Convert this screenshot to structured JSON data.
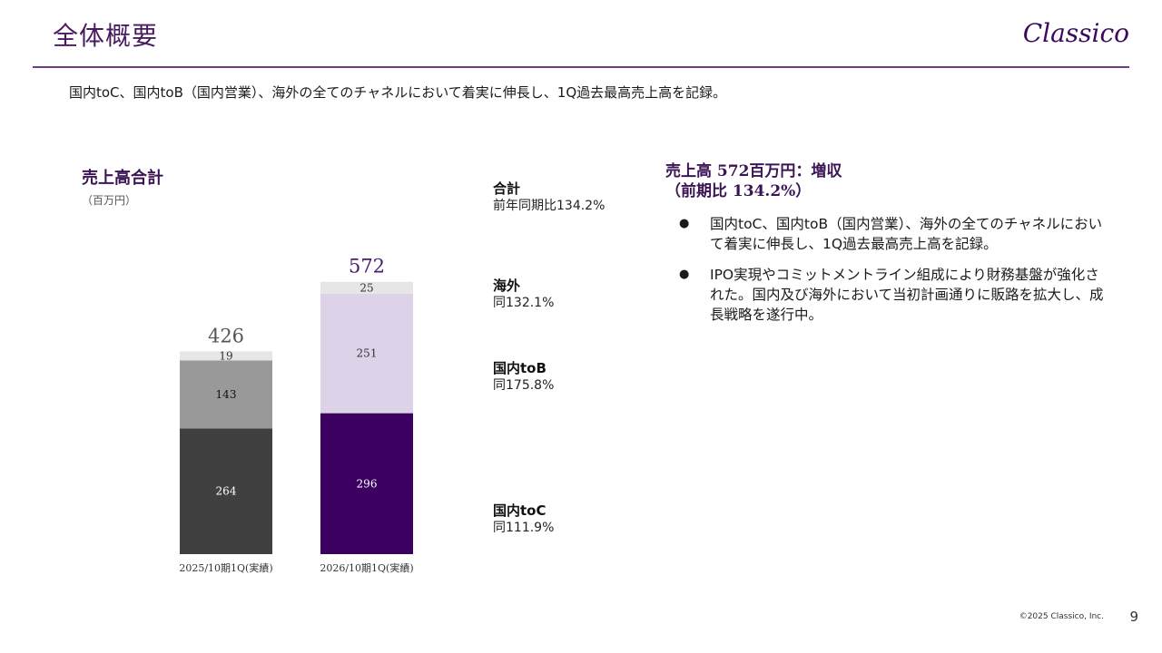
{
  "header": {
    "title": "全体概要",
    "logo_text": "Classico"
  },
  "subtitle": "国内toC、国内toB（国内営業）、海外の全てのチャネルにおいて着実に伸長し、1Q過去最高売上高を記録。",
  "chart_data": {
    "type": "bar",
    "stacked": true,
    "title": "売上高合計",
    "unit": "（百万円）",
    "categories": [
      "2025/10期1Q(実績)",
      "2026/10期1Q(実績)"
    ],
    "totals": [
      426,
      572
    ],
    "series": [
      {
        "name": "国内toC",
        "values": [
          264,
          296
        ],
        "colors": [
          "#404040",
          "#3b0060"
        ],
        "label_colors": [
          "#ffffff",
          "#ffffff"
        ]
      },
      {
        "name": "国内toB",
        "values": [
          143,
          251
        ],
        "colors": [
          "#999999",
          "#ddd3e8"
        ],
        "label_colors": [
          "#111111",
          "#333333"
        ]
      },
      {
        "name": "海外",
        "values": [
          19,
          25
        ],
        "colors": [
          "#e6e6e6",
          "#e6e6e6"
        ],
        "label_colors": [
          "#333333",
          "#333333"
        ]
      }
    ],
    "total_label_colors": [
      "#555555",
      "#4a1a6e"
    ],
    "ylim": [
      0,
      600
    ]
  },
  "growth": [
    {
      "name": "合計",
      "value": "前年同期比134.2%"
    },
    {
      "name": "海外",
      "value": "同132.1%"
    },
    {
      "name": "国内toB",
      "value": "同175.8%"
    },
    {
      "name": "国内toC",
      "value": "同111.9%"
    }
  ],
  "summary": {
    "head_line1": "売上高 572百万円：増収",
    "head_line2": "（前期比 134.2%）",
    "bullet_glyph": "●",
    "bullets": [
      "国内toC、国内toB（国内営業）、海外の全てのチャネルにおいて着実に伸長し、1Q過去最高売上高を記録。",
      "IPO実現やコミットメントライン組成により財務基盤が強化された。国内及び海外において当初計画通りに販路を拡大し、成長戦略を遂行中。"
    ]
  },
  "footer": {
    "copyright": "©2025 Classico, Inc.",
    "page": "9"
  }
}
